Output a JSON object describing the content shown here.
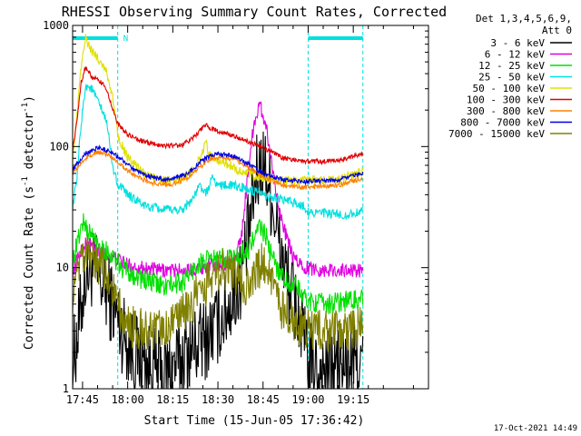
{
  "chart_data": {
    "type": "line",
    "title": "RHESSI Observing Summary Count Rates, Corrected",
    "xlabel": "Start Time (15-Jun-05 17:36:42)",
    "ylabel_main": "Corrected Count Rate (s",
    "ylabel_exp1": "-1",
    "ylabel_mid": " detector",
    "ylabel_exp2": "-1",
    "ylabel_end": ")",
    "yscale": "log",
    "ylim": [
      1,
      1000
    ],
    "xlim_min": [
      41.7,
      160
    ],
    "yticks": [
      {
        "v": 1,
        "label": "1"
      },
      {
        "v": 10,
        "label": "10"
      },
      {
        "v": 100,
        "label": "100"
      },
      {
        "v": 1000,
        "label": "1000"
      }
    ],
    "xticks": [
      {
        "v": 45,
        "label": "17:45"
      },
      {
        "v": 60,
        "label": "18:00"
      },
      {
        "v": 75,
        "label": "18:15"
      },
      {
        "v": 90,
        "label": "18:30"
      },
      {
        "v": 105,
        "label": "18:45"
      },
      {
        "v": 120,
        "label": "19:00"
      },
      {
        "v": 135,
        "label": "19:15"
      }
    ],
    "legend_header": [
      "Det 1,3,4,5,6,9,",
      "Att 0"
    ],
    "night_intervals": [
      [
        41.7,
        56.7
      ],
      [
        120.0,
        138.2
      ]
    ],
    "night_bar_label": "N",
    "timestamp": "17-Oct-2021 14:49",
    "series": [
      {
        "name": "3 - 6 keV",
        "color": "#000000",
        "noise": 0.35,
        "floor": 1,
        "knots": [
          [
            41.7,
            1.6
          ],
          [
            43.5,
            3
          ],
          [
            46,
            9
          ],
          [
            48,
            10
          ],
          [
            52,
            7
          ],
          [
            55,
            5
          ],
          [
            58,
            3
          ],
          [
            62,
            2
          ],
          [
            66,
            1.6
          ],
          [
            72,
            1.3
          ],
          [
            80,
            2
          ],
          [
            86,
            2.6
          ],
          [
            92,
            4
          ],
          [
            97,
            7
          ],
          [
            100,
            18
          ],
          [
            103,
            60
          ],
          [
            105,
            75
          ],
          [
            107,
            50
          ],
          [
            110,
            18
          ],
          [
            113,
            8
          ],
          [
            117,
            4
          ],
          [
            120,
            1.6
          ],
          [
            125,
            1.4
          ],
          [
            130,
            1.5
          ],
          [
            138.2,
            1.7
          ]
        ]
      },
      {
        "name": "6 - 12 keV",
        "color": "#e000e0",
        "noise": 0.06,
        "floor": 1,
        "knots": [
          [
            41.7,
            9
          ],
          [
            44,
            13
          ],
          [
            46,
            16
          ],
          [
            48,
            15
          ],
          [
            52,
            13
          ],
          [
            56,
            12
          ],
          [
            60,
            10.5
          ],
          [
            70,
            9.5
          ],
          [
            80,
            9.5
          ],
          [
            88,
            10.5
          ],
          [
            94,
            11
          ],
          [
            96,
            12
          ],
          [
            98,
            20
          ],
          [
            100,
            60
          ],
          [
            102,
            160
          ],
          [
            104,
            220
          ],
          [
            106,
            150
          ],
          [
            108,
            70
          ],
          [
            111,
            25
          ],
          [
            115,
            12
          ],
          [
            119,
            10
          ],
          [
            125,
            9.5
          ],
          [
            138.2,
            9.5
          ]
        ]
      },
      {
        "name": "12 - 25 keV",
        "color": "#00e000",
        "noise": 0.09,
        "floor": 1,
        "knots": [
          [
            41.7,
            11
          ],
          [
            43.5,
            17
          ],
          [
            45,
            24
          ],
          [
            47,
            20
          ],
          [
            50,
            16
          ],
          [
            54,
            13
          ],
          [
            58,
            10
          ],
          [
            65,
            8
          ],
          [
            72,
            7
          ],
          [
            78,
            7.5
          ],
          [
            84,
            11
          ],
          [
            90,
            12
          ],
          [
            96,
            12
          ],
          [
            100,
            14
          ],
          [
            104,
            22
          ],
          [
            106,
            18
          ],
          [
            108,
            12
          ],
          [
            112,
            8
          ],
          [
            116,
            7
          ],
          [
            119,
            5.5
          ],
          [
            125,
            5
          ],
          [
            138.2,
            5.5
          ]
        ]
      },
      {
        "name": "25 - 50 keV",
        "color": "#00e0e0",
        "noise": 0.04,
        "floor": 1,
        "knots": [
          [
            41.7,
            32
          ],
          [
            43,
            50
          ],
          [
            44.5,
            150
          ],
          [
            46,
            320
          ],
          [
            48,
            300
          ],
          [
            50,
            240
          ],
          [
            53,
            160
          ],
          [
            55.5,
            60
          ],
          [
            57,
            48
          ],
          [
            60,
            40
          ],
          [
            66,
            32
          ],
          [
            72,
            30
          ],
          [
            78,
            30
          ],
          [
            82,
            38
          ],
          [
            84,
            48
          ],
          [
            86,
            40
          ],
          [
            88,
            55
          ],
          [
            90,
            48
          ],
          [
            94,
            48
          ],
          [
            98,
            46
          ],
          [
            102,
            42
          ],
          [
            108,
            38
          ],
          [
            114,
            35
          ],
          [
            118,
            33
          ],
          [
            120,
            29
          ],
          [
            126,
            28
          ],
          [
            132,
            27
          ],
          [
            138.2,
            29
          ]
        ]
      },
      {
        "name": "50 - 100 keV",
        "color": "#e0e000",
        "noise": 0.04,
        "floor": 1,
        "knots": [
          [
            41.7,
            80
          ],
          [
            43,
            160
          ],
          [
            44.5,
            450
          ],
          [
            46,
            780
          ],
          [
            48,
            620
          ],
          [
            51,
            500
          ],
          [
            53,
            420
          ],
          [
            55,
            250
          ],
          [
            57,
            120
          ],
          [
            60,
            80
          ],
          [
            66,
            58
          ],
          [
            72,
            52
          ],
          [
            78,
            53
          ],
          [
            82,
            65
          ],
          [
            84,
            80
          ],
          [
            86,
            110
          ],
          [
            87,
            85
          ],
          [
            89,
            80
          ],
          [
            93,
            72
          ],
          [
            98,
            62
          ],
          [
            104,
            55
          ],
          [
            110,
            52
          ],
          [
            116,
            52
          ],
          [
            120,
            52
          ],
          [
            130,
            53
          ],
          [
            138.2,
            62
          ]
        ]
      },
      {
        "name": "100 - 300 keV",
        "color": "#e00000",
        "noise": 0.02,
        "floor": 1,
        "knots": [
          [
            41.7,
            95
          ],
          [
            43,
            150
          ],
          [
            44.5,
            340
          ],
          [
            46,
            450
          ],
          [
            48,
            380
          ],
          [
            51,
            340
          ],
          [
            53,
            300
          ],
          [
            55,
            200
          ],
          [
            57,
            150
          ],
          [
            60,
            125
          ],
          [
            66,
            108
          ],
          [
            72,
            102
          ],
          [
            78,
            102
          ],
          [
            82,
            120
          ],
          [
            84,
            135
          ],
          [
            86,
            150
          ],
          [
            88,
            140
          ],
          [
            92,
            130
          ],
          [
            98,
            115
          ],
          [
            104,
            100
          ],
          [
            108,
            90
          ],
          [
            112,
            80
          ],
          [
            118,
            76
          ],
          [
            125,
            75
          ],
          [
            132,
            78
          ],
          [
            138.2,
            88
          ]
        ]
      },
      {
        "name": "300 - 800 keV",
        "color": "#ff8000",
        "noise": 0.02,
        "floor": 1,
        "knots": [
          [
            41.7,
            60
          ],
          [
            46,
            80
          ],
          [
            50,
            90
          ],
          [
            54,
            85
          ],
          [
            58,
            70
          ],
          [
            62,
            58
          ],
          [
            68,
            50
          ],
          [
            74,
            48
          ],
          [
            80,
            55
          ],
          [
            84,
            68
          ],
          [
            88,
            80
          ],
          [
            92,
            82
          ],
          [
            96,
            78
          ],
          [
            100,
            68
          ],
          [
            104,
            58
          ],
          [
            108,
            52
          ],
          [
            112,
            48
          ],
          [
            118,
            46
          ],
          [
            124,
            47
          ],
          [
            130,
            48
          ],
          [
            138.2,
            55
          ]
        ]
      },
      {
        "name": "800 - 7000 keV",
        "color": "#0000e0",
        "noise": 0.02,
        "floor": 1,
        "knots": [
          [
            41.7,
            65
          ],
          [
            46,
            88
          ],
          [
            50,
            98
          ],
          [
            54,
            92
          ],
          [
            58,
            78
          ],
          [
            62,
            64
          ],
          [
            68,
            56
          ],
          [
            74,
            53
          ],
          [
            80,
            60
          ],
          [
            84,
            74
          ],
          [
            88,
            86
          ],
          [
            92,
            86
          ],
          [
            96,
            82
          ],
          [
            100,
            72
          ],
          [
            104,
            62
          ],
          [
            108,
            56
          ],
          [
            112,
            53
          ],
          [
            118,
            51
          ],
          [
            124,
            52
          ],
          [
            130,
            53
          ],
          [
            138.2,
            60
          ]
        ]
      },
      {
        "name": "7000 - 15000 keV",
        "color": "#808000",
        "noise": 0.18,
        "floor": 1,
        "knots": [
          [
            41.7,
            6
          ],
          [
            44,
            10
          ],
          [
            46,
            12
          ],
          [
            48,
            13
          ],
          [
            50,
            11
          ],
          [
            53,
            9
          ],
          [
            56,
            6
          ],
          [
            58,
            4
          ],
          [
            62,
            3.2
          ],
          [
            70,
            3
          ],
          [
            75,
            3.3
          ],
          [
            80,
            4.5
          ],
          [
            84,
            6.5
          ],
          [
            88,
            8
          ],
          [
            90,
            9.5
          ],
          [
            94,
            10
          ],
          [
            96,
            8
          ],
          [
            100,
            7
          ],
          [
            103,
            9
          ],
          [
            105,
            12
          ],
          [
            107,
            8
          ],
          [
            110,
            5
          ],
          [
            114,
            4
          ],
          [
            119,
            3
          ],
          [
            125,
            3
          ],
          [
            132,
            3
          ],
          [
            138.2,
            3.2
          ]
        ]
      }
    ]
  }
}
